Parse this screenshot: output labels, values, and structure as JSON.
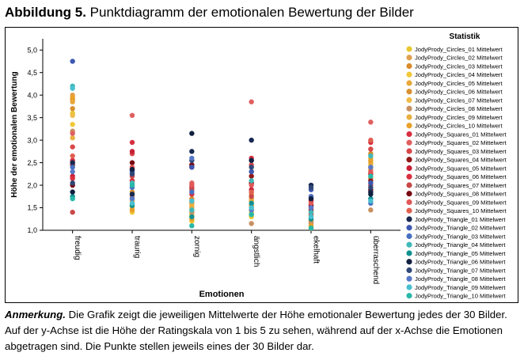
{
  "figure": {
    "label": "Abbildung 5.",
    "title": "Punktdiagramm der emotionalen Bewertung der Bilder"
  },
  "caption": {
    "lead": "Anmerkung.",
    "text": "Die Grafik zeigt die jeweiligen Mittelwerte der Höhe emotionaler Bewertung jedes der 30 Bilder. Auf der y-Achse ist die Höhe der Ratingskala von 1 bis 5 zu sehen, während auf der x-Achse die Emotionen abgetragen sind. Die Punkte stellen jeweils eines der 30 Bilder dar."
  },
  "chart_data": {
    "type": "scatter",
    "xlabel": "Emotionen",
    "ylabel": "Höhe der emotionalen Bewertung",
    "ylim": [
      1,
      5.25
    ],
    "yticks": [
      "1,0",
      "1,5",
      "2,0",
      "2,5",
      "3,0",
      "3,5",
      "4,0",
      "4,5",
      "5,0"
    ],
    "categories": [
      "freudig",
      "traurig",
      "zornig",
      "ängstlich",
      "ekelhaft",
      "überraschend"
    ],
    "legend_title": "Statistik",
    "legend_position": "right",
    "grid": false,
    "series": [
      {
        "name": "JodyPrody_Circles_01 Mittelwert",
        "color": "#e8c832",
        "values": [
          3.6,
          1.55,
          1.35,
          1.3,
          1.1,
          2.45
        ]
      },
      {
        "name": "JodyPrody_Circles_02 Mittelwert",
        "color": "#e0a050",
        "values": [
          4.0,
          1.75,
          1.5,
          1.7,
          1.25,
          2.35
        ]
      },
      {
        "name": "JodyPrody_Circles_03 Mittelwert",
        "color": "#d88c2a",
        "values": [
          3.9,
          2.1,
          1.6,
          1.8,
          1.15,
          2.7
        ]
      },
      {
        "name": "JodyPrody_Circles_04 Mittelwert",
        "color": "#f0c838",
        "values": [
          3.35,
          1.4,
          1.2,
          1.45,
          1.05,
          2.25
        ]
      },
      {
        "name": "JodyPrody_Circles_05 Mittelwert",
        "color": "#e8a838",
        "values": [
          3.85,
          1.65,
          1.45,
          1.65,
          1.3,
          2.5
        ]
      },
      {
        "name": "JodyPrody_Circles_06 Mittelwert",
        "color": "#d89030",
        "values": [
          3.7,
          1.85,
          1.7,
          1.55,
          1.2,
          2.15
        ]
      },
      {
        "name": "JodyPrody_Circles_07 Mittelwert",
        "color": "#f0bc48",
        "values": [
          3.55,
          1.5,
          1.3,
          1.4,
          1.05,
          2.4
        ]
      },
      {
        "name": "JodyPrody_Circles_08 Mittelwert",
        "color": "#c89060",
        "values": [
          3.2,
          1.75,
          1.4,
          1.15,
          1.15,
          1.45
        ]
      },
      {
        "name": "JodyPrody_Circles_09 Mittelwert",
        "color": "#e8b040",
        "values": [
          3.05,
          1.6,
          1.55,
          1.5,
          1.35,
          2.6
        ]
      },
      {
        "name": "JodyPrody_Circles_10 Mittelwert",
        "color": "#e8a028",
        "values": [
          3.95,
          1.45,
          1.25,
          1.35,
          1.1,
          2.55
        ]
      },
      {
        "name": "JodyPrody_Squares_01 Mittelwert",
        "color": "#d83040",
        "values": [
          2.55,
          2.95,
          2.4,
          2.6,
          1.55,
          2.95
        ]
      },
      {
        "name": "JodyPrody_Squares_02 Mittelwert",
        "color": "#e06060",
        "values": [
          3.15,
          3.55,
          2.05,
          3.85,
          1.7,
          3.4
        ]
      },
      {
        "name": "JodyPrody_Squares_03 Mittelwert",
        "color": "#d84848",
        "values": [
          2.85,
          2.7,
          2.45,
          2.45,
          1.5,
          2.8
        ]
      },
      {
        "name": "JodyPrody_Squares_04 Mittelwert",
        "color": "#901818",
        "values": [
          2.45,
          2.35,
          2.4,
          2.2,
          1.45,
          2.1
        ]
      },
      {
        "name": "JodyPrody_Squares_05 Mittelwert",
        "color": "#c82038",
        "values": [
          2.2,
          2.75,
          1.95,
          1.9,
          1.65,
          2.25
        ]
      },
      {
        "name": "JodyPrody_Squares_06 Mittelwert",
        "color": "#d83040",
        "values": [
          2.15,
          2.1,
          1.8,
          2.3,
          1.75,
          1.85
        ]
      },
      {
        "name": "JodyPrody_Squares_07 Mittelwert",
        "color": "#c84848",
        "values": [
          1.4,
          2.2,
          1.9,
          1.75,
          1.35,
          2.0
        ]
      },
      {
        "name": "JodyPrody_Squares_08 Mittelwert",
        "color": "#780810",
        "values": [
          2.0,
          2.5,
          2.45,
          2.05,
          1.55,
          1.9
        ]
      },
      {
        "name": "JodyPrody_Squares_09 Mittelwert",
        "color": "#e05858",
        "values": [
          2.5,
          2.4,
          2.0,
          2.0,
          1.6,
          2.3
        ]
      },
      {
        "name": "JodyPrody_Squares_10 Mittelwert",
        "color": "#e06050",
        "values": [
          2.65,
          2.25,
          1.65,
          1.85,
          1.4,
          3.0
        ]
      },
      {
        "name": "JodyPrody_Triangle_01 Mittelwert",
        "color": "#182850",
        "values": [
          2.5,
          1.8,
          2.75,
          3.0,
          2.0,
          1.85
        ]
      },
      {
        "name": "JodyPrody_Triangle_02 Mittelwert",
        "color": "#3c58b0",
        "values": [
          4.75,
          2.3,
          2.4,
          2.3,
          1.9,
          2.05
        ]
      },
      {
        "name": "JodyPrody_Triangle_03 Mittelwert",
        "color": "#4870c0",
        "values": [
          2.4,
          1.95,
          1.85,
          2.55,
          1.75,
          1.6
        ]
      },
      {
        "name": "JodyPrody_Triangle_04 Mittelwert",
        "color": "#40b8b8",
        "values": [
          4.2,
          2.05,
          1.45,
          2.1,
          1.4,
          2.65
        ]
      },
      {
        "name": "JodyPrody_Triangle_05 Mittelwert",
        "color": "#109090",
        "values": [
          1.75,
          1.55,
          1.3,
          1.6,
          1.25,
          1.7
        ]
      },
      {
        "name": "JodyPrody_Triangle_06 Mittelwert",
        "color": "#102040",
        "values": [
          1.85,
          2.35,
          3.15,
          2.55,
          1.7,
          1.8
        ]
      },
      {
        "name": "JodyPrody_Triangle_07 Mittelwert",
        "color": "#304878",
        "values": [
          2.05,
          2.25,
          2.55,
          2.4,
          1.95,
          1.95
        ]
      },
      {
        "name": "JodyPrody_Triangle_08 Mittelwert",
        "color": "#5878c8",
        "values": [
          2.3,
          1.7,
          2.6,
          1.45,
          1.5,
          2.4
        ]
      },
      {
        "name": "JodyPrody_Triangle_09 Mittelwert",
        "color": "#48c0d0",
        "values": [
          4.15,
          1.6,
          1.65,
          1.5,
          1.3,
          1.65
        ]
      },
      {
        "name": "JodyPrody_Triangle_10 Mittelwert",
        "color": "#28b8a8",
        "values": [
          1.7,
          2.0,
          1.1,
          1.35,
          1.05,
          2.2
        ]
      }
    ]
  }
}
